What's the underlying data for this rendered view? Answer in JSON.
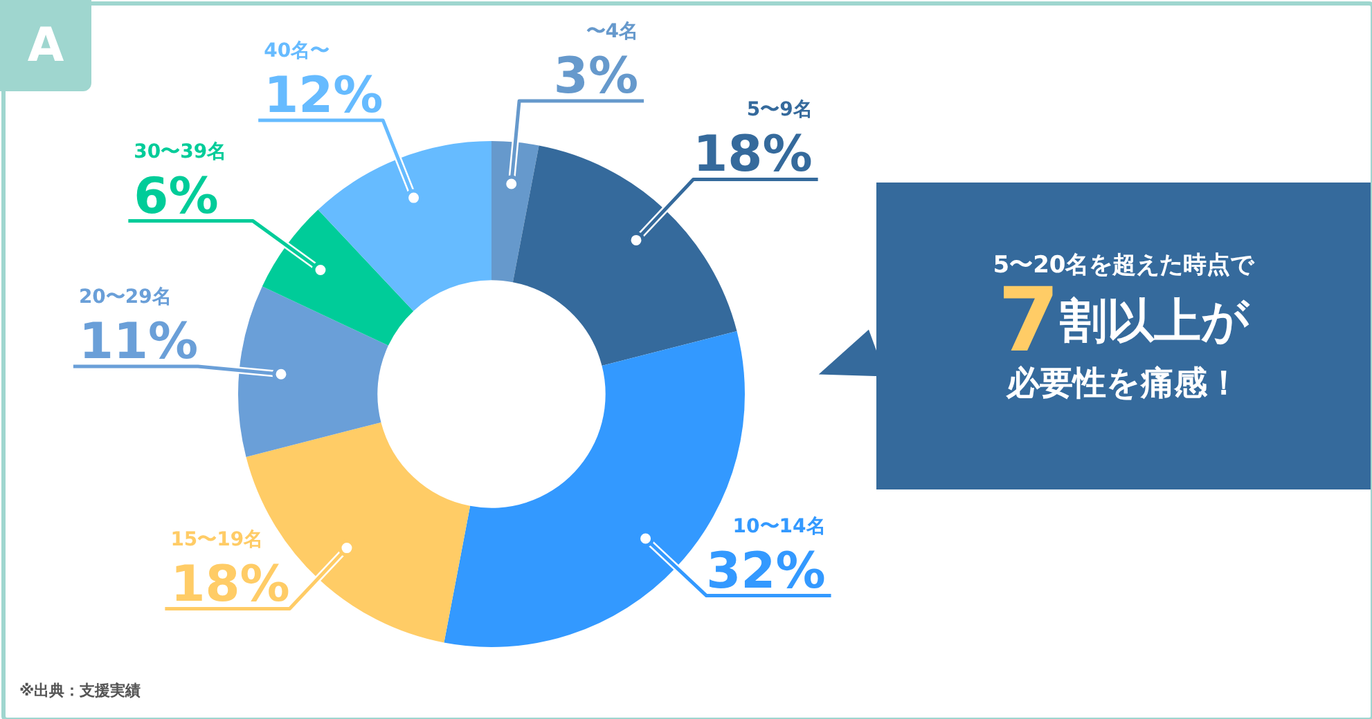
{
  "chart_data": {
    "type": "donut",
    "categories": [
      "〜4名",
      "5〜9名",
      "10〜14名",
      "15〜19名",
      "20〜29名",
      "30〜39名",
      "40名〜"
    ],
    "values": [
      3,
      18,
      32,
      18,
      11,
      6,
      12
    ],
    "colors": [
      "#6699cc",
      "#356a9c",
      "#3399ff",
      "#ffcc66",
      "#6a9fd8",
      "#00cc99",
      "#66bbff"
    ],
    "value_labels": [
      "3%",
      "18%",
      "32%",
      "18%",
      "11%",
      "6%",
      "12%"
    ],
    "legend": false,
    "annotations": [
      "A",
      "5〜20名を超えた時点で",
      "7割以上が",
      "必要性を痛感！",
      "※出典：支援実績"
    ]
  }
}
